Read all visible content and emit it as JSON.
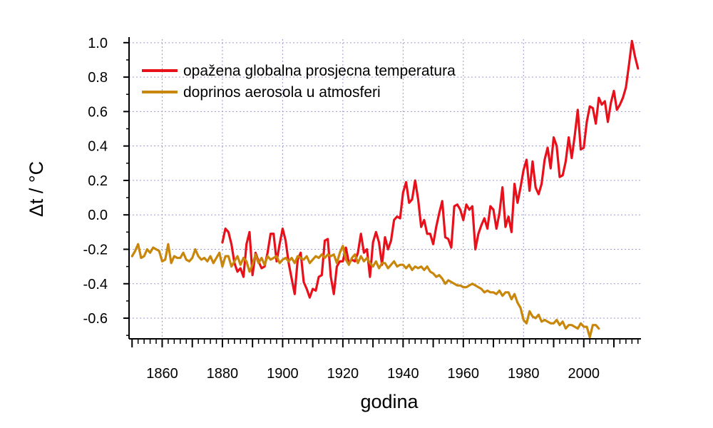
{
  "chart_data": {
    "type": "line",
    "xlabel": "godina",
    "ylabel": "Δt / °C",
    "xlim": [
      1849,
      2019
    ],
    "ylim": [
      -0.72,
      1.02
    ],
    "x_ticks": [
      1860,
      1880,
      1900,
      1920,
      1940,
      1960,
      1980,
      2000
    ],
    "x_tick_labels": [
      "1860",
      "1880",
      "1900",
      "1920",
      "1940",
      "1960",
      "1980",
      "2000"
    ],
    "y_ticks": [
      -0.6,
      -0.4,
      -0.2,
      0.0,
      0.2,
      0.4,
      0.6,
      0.8,
      1.0
    ],
    "y_tick_labels": [
      "-0.6",
      "-0.4",
      "-0.2",
      "0.0",
      "0.2",
      "0.4",
      "0.6",
      "0.8",
      "1.0"
    ],
    "grid": true,
    "legend_position": "top-left",
    "colors": {
      "temperature": "#e8101b",
      "aerosol": "#c8860a",
      "grid": "#9a9ad0"
    },
    "series": [
      {
        "name": "opažena globalna prosjecna temperatura",
        "color": "#e8101b",
        "x": [
          1880,
          1881,
          1882,
          1883,
          1884,
          1885,
          1886,
          1887,
          1888,
          1889,
          1890,
          1891,
          1892,
          1893,
          1894,
          1895,
          1896,
          1897,
          1898,
          1899,
          1900,
          1901,
          1902,
          1903,
          1904,
          1905,
          1906,
          1907,
          1908,
          1909,
          1910,
          1911,
          1912,
          1913,
          1914,
          1915,
          1916,
          1917,
          1918,
          1919,
          1920,
          1921,
          1922,
          1923,
          1924,
          1925,
          1926,
          1927,
          1928,
          1929,
          1930,
          1931,
          1932,
          1933,
          1934,
          1935,
          1936,
          1937,
          1938,
          1939,
          1940,
          1941,
          1942,
          1943,
          1944,
          1945,
          1946,
          1947,
          1948,
          1949,
          1950,
          1951,
          1952,
          1953,
          1954,
          1955,
          1956,
          1957,
          1958,
          1959,
          1960,
          1961,
          1962,
          1963,
          1964,
          1965,
          1966,
          1967,
          1968,
          1969,
          1970,
          1971,
          1972,
          1973,
          1974,
          1975,
          1976,
          1977,
          1978,
          1979,
          1980,
          1981,
          1982,
          1983,
          1984,
          1985,
          1986,
          1987,
          1988,
          1989,
          1990,
          1991,
          1992,
          1993,
          1994,
          1995,
          1996,
          1997,
          1998,
          1999,
          2000,
          2001,
          2002,
          2003,
          2004,
          2005,
          2006,
          2007,
          2008,
          2009,
          2010,
          2011,
          2012,
          2013,
          2014,
          2015,
          2016,
          2017,
          2018
        ],
        "values": [
          -0.16,
          -0.08,
          -0.1,
          -0.17,
          -0.28,
          -0.33,
          -0.31,
          -0.36,
          -0.17,
          -0.1,
          -0.35,
          -0.22,
          -0.27,
          -0.31,
          -0.3,
          -0.22,
          -0.11,
          -0.11,
          -0.27,
          -0.17,
          -0.08,
          -0.15,
          -0.28,
          -0.37,
          -0.46,
          -0.26,
          -0.22,
          -0.39,
          -0.43,
          -0.48,
          -0.43,
          -0.44,
          -0.36,
          -0.35,
          -0.15,
          -0.14,
          -0.36,
          -0.46,
          -0.3,
          -0.27,
          -0.27,
          -0.19,
          -0.28,
          -0.26,
          -0.27,
          -0.22,
          -0.11,
          -0.22,
          -0.2,
          -0.36,
          -0.16,
          -0.1,
          -0.16,
          -0.29,
          -0.13,
          -0.2,
          -0.15,
          -0.03,
          -0.01,
          -0.02,
          0.13,
          0.19,
          0.07,
          0.09,
          0.2,
          0.09,
          -0.07,
          -0.03,
          -0.11,
          -0.11,
          -0.17,
          -0.07,
          0.01,
          0.08,
          -0.13,
          -0.14,
          -0.19,
          0.05,
          0.06,
          0.03,
          -0.03,
          0.06,
          0.03,
          0.05,
          -0.2,
          -0.11,
          -0.06,
          -0.02,
          -0.08,
          0.05,
          0.03,
          -0.08,
          0.01,
          0.16,
          -0.07,
          -0.01,
          -0.1,
          0.18,
          0.07,
          0.16,
          0.26,
          0.32,
          0.14,
          0.31,
          0.16,
          0.12,
          0.18,
          0.32,
          0.39,
          0.27,
          0.45,
          0.4,
          0.22,
          0.23,
          0.31,
          0.45,
          0.33,
          0.46,
          0.61,
          0.38,
          0.39,
          0.54,
          0.63,
          0.62,
          0.53,
          0.68,
          0.64,
          0.66,
          0.54,
          0.65,
          0.72,
          0.61,
          0.64,
          0.68,
          0.74,
          0.87,
          1.01,
          0.92,
          0.85
        ]
      },
      {
        "name": "doprinos aerosola u atmosferi",
        "color": "#c8860a",
        "x": [
          1850,
          1851,
          1852,
          1853,
          1854,
          1855,
          1856,
          1857,
          1858,
          1859,
          1860,
          1861,
          1862,
          1863,
          1864,
          1865,
          1866,
          1867,
          1868,
          1869,
          1870,
          1871,
          1872,
          1873,
          1874,
          1875,
          1876,
          1877,
          1878,
          1879,
          1880,
          1881,
          1882,
          1883,
          1884,
          1885,
          1886,
          1887,
          1888,
          1889,
          1890,
          1891,
          1892,
          1893,
          1894,
          1895,
          1896,
          1897,
          1898,
          1899,
          1900,
          1901,
          1902,
          1903,
          1904,
          1905,
          1906,
          1907,
          1908,
          1909,
          1910,
          1911,
          1912,
          1913,
          1914,
          1915,
          1916,
          1917,
          1918,
          1919,
          1920,
          1921,
          1922,
          1923,
          1924,
          1925,
          1926,
          1927,
          1928,
          1929,
          1930,
          1931,
          1932,
          1933,
          1934,
          1935,
          1936,
          1937,
          1938,
          1939,
          1940,
          1941,
          1942,
          1943,
          1944,
          1945,
          1946,
          1947,
          1948,
          1949,
          1950,
          1951,
          1952,
          1953,
          1954,
          1955,
          1956,
          1957,
          1958,
          1959,
          1960,
          1961,
          1962,
          1963,
          1964,
          1965,
          1966,
          1967,
          1968,
          1969,
          1970,
          1971,
          1972,
          1973,
          1974,
          1975,
          1976,
          1977,
          1978,
          1979,
          1980,
          1981,
          1982,
          1983,
          1984,
          1985,
          1986,
          1987,
          1988,
          1989,
          1990,
          1991,
          1992,
          1993,
          1994,
          1995,
          1996,
          1997,
          1998,
          1999,
          2000,
          2001,
          2002,
          2003,
          2004,
          2005
        ],
        "values": [
          -0.24,
          -0.21,
          -0.17,
          -0.25,
          -0.24,
          -0.2,
          -0.22,
          -0.19,
          -0.2,
          -0.21,
          -0.27,
          -0.26,
          -0.17,
          -0.28,
          -0.24,
          -0.25,
          -0.25,
          -0.22,
          -0.26,
          -0.27,
          -0.25,
          -0.2,
          -0.24,
          -0.26,
          -0.25,
          -0.27,
          -0.24,
          -0.28,
          -0.25,
          -0.22,
          -0.3,
          -0.24,
          -0.24,
          -0.3,
          -0.27,
          -0.24,
          -0.29,
          -0.25,
          -0.27,
          -0.33,
          -0.29,
          -0.23,
          -0.28,
          -0.25,
          -0.29,
          -0.24,
          -0.26,
          -0.25,
          -0.24,
          -0.28,
          -0.26,
          -0.25,
          -0.27,
          -0.25,
          -0.28,
          -0.24,
          -0.25,
          -0.26,
          -0.24,
          -0.28,
          -0.26,
          -0.24,
          -0.25,
          -0.23,
          -0.25,
          -0.23,
          -0.24,
          -0.23,
          -0.28,
          -0.22,
          -0.18,
          -0.26,
          -0.29,
          -0.25,
          -0.23,
          -0.28,
          -0.24,
          -0.27,
          -0.25,
          -0.28,
          -0.3,
          -0.27,
          -0.31,
          -0.28,
          -0.28,
          -0.31,
          -0.29,
          -0.27,
          -0.3,
          -0.29,
          -0.29,
          -0.31,
          -0.29,
          -0.32,
          -0.3,
          -0.31,
          -0.3,
          -0.32,
          -0.3,
          -0.33,
          -0.34,
          -0.36,
          -0.35,
          -0.37,
          -0.4,
          -0.38,
          -0.39,
          -0.4,
          -0.41,
          -0.41,
          -0.42,
          -0.42,
          -0.41,
          -0.4,
          -0.41,
          -0.42,
          -0.43,
          -0.45,
          -0.44,
          -0.45,
          -0.45,
          -0.46,
          -0.44,
          -0.47,
          -0.45,
          -0.45,
          -0.49,
          -0.46,
          -0.51,
          -0.54,
          -0.61,
          -0.63,
          -0.56,
          -0.59,
          -0.6,
          -0.58,
          -0.62,
          -0.61,
          -0.62,
          -0.63,
          -0.63,
          -0.61,
          -0.64,
          -0.62,
          -0.66,
          -0.64,
          -0.64,
          -0.65,
          -0.66,
          -0.63,
          -0.65,
          -0.65,
          -0.71,
          -0.64,
          -0.64,
          -0.66
        ]
      }
    ]
  }
}
